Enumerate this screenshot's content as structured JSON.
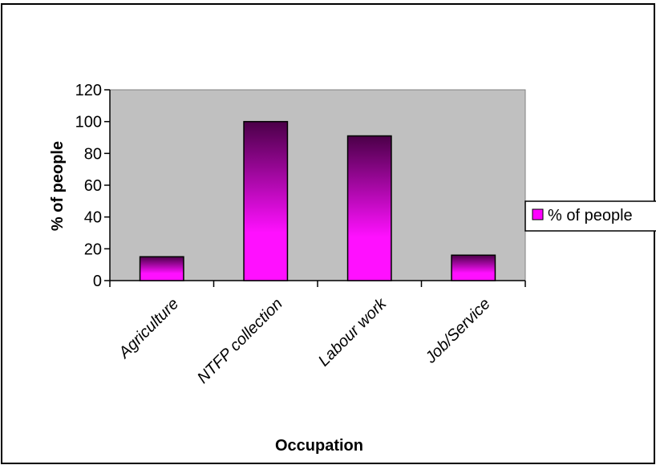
{
  "chart_data": {
    "type": "bar",
    "title": "",
    "xlabel": "Occupation",
    "ylabel": "% of people",
    "categories": [
      "Agriculture",
      "NTFP collection",
      "Labour work",
      "Job/Service"
    ],
    "series": [
      {
        "name": "% of people",
        "values": [
          15,
          100,
          91,
          16
        ]
      }
    ],
    "ylim": [
      0,
      120
    ],
    "yticks": [
      0,
      20,
      40,
      60,
      80,
      100,
      120
    ],
    "grid": false,
    "legend_position": "right",
    "colors": {
      "plot_bg": "#c0c0c0",
      "bar_top": "#4b0048",
      "bar_bottom": "#ff10ff",
      "legend_swatch": "#ff00ff",
      "frame": "#000000"
    }
  }
}
